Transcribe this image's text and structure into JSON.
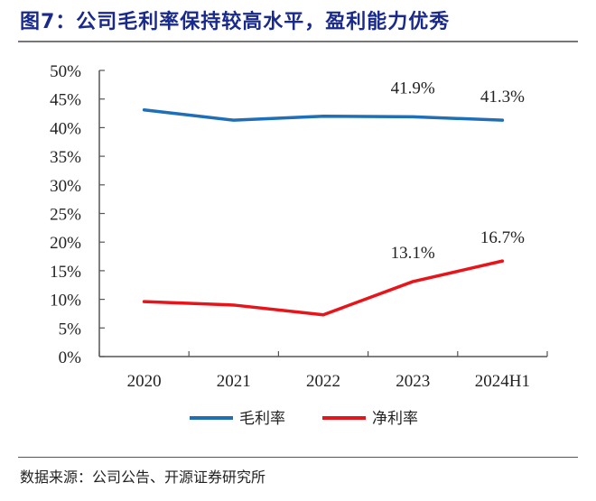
{
  "title": "图7：公司毛利率保持较高水平，盈利能力优秀",
  "source": "数据来源：公司公告、开源证券研究所",
  "colors": {
    "gross": "#1f6fb8",
    "net": "#e8141a",
    "title": "#1a2a8c"
  },
  "chart_data": {
    "type": "line",
    "title": "公司毛利率保持较高水平，盈利能力优秀",
    "xlabel": "",
    "ylabel": "",
    "categories": [
      "2020",
      "2021",
      "2022",
      "2023",
      "2024H1"
    ],
    "ylim": [
      0,
      50
    ],
    "yticks": [
      "0%",
      "5%",
      "10%",
      "15%",
      "20%",
      "25%",
      "30%",
      "35%",
      "40%",
      "45%",
      "50%"
    ],
    "ytick_values": [
      0,
      5,
      10,
      15,
      20,
      25,
      30,
      35,
      40,
      45,
      50
    ],
    "grid": false,
    "legend_position": "bottom-center",
    "series": [
      {
        "name": "毛利率",
        "color": "#1f6fb8",
        "values": [
          43.1,
          41.3,
          42.0,
          41.9,
          41.3
        ],
        "labels": [
          null,
          null,
          null,
          "41.9%",
          "41.3%"
        ]
      },
      {
        "name": "净利率",
        "color": "#e8141a",
        "values": [
          9.6,
          9.0,
          7.3,
          13.1,
          16.7
        ],
        "labels": [
          null,
          null,
          null,
          "13.1%",
          "16.7%"
        ]
      }
    ]
  }
}
